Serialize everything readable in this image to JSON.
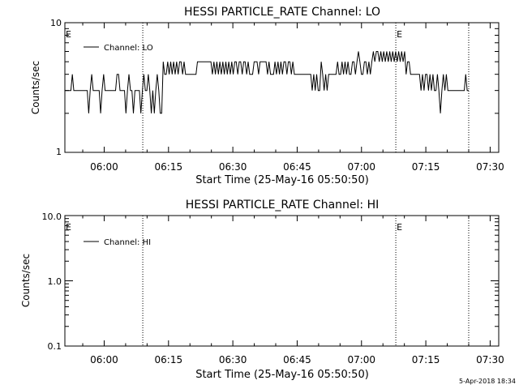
{
  "chart_data": [
    {
      "type": "line",
      "title": "HESSI PARTICLE_RATE Channel: LO",
      "xlabel": "Start Time (25-May-16 05:50:50)",
      "ylabel": "Counts/sec",
      "yscale": "log",
      "xlim": [
        "05:50:50",
        "07:32:00"
      ],
      "ylim": [
        1,
        10
      ],
      "x_ticks": [
        "06:00",
        "06:15",
        "06:30",
        "06:45",
        "07:00",
        "07:15",
        "07:30"
      ],
      "y_ticks": [
        "1",
        "10"
      ],
      "legend": [
        "Channel: LO"
      ],
      "legend_position": "top-left",
      "event_markers": [
        {
          "time": "05:50:50",
          "label": "E"
        },
        {
          "time": "06:09:00",
          "label": ""
        },
        {
          "time": "07:08:00",
          "label": "E"
        },
        {
          "time": "07:25:00",
          "label": ""
        }
      ],
      "series": [
        {
          "name": "Channel: LO",
          "time_start": "05:50:50",
          "time_end": "07:25:00",
          "values": [
            3,
            3,
            3,
            3,
            3,
            4,
            3,
            3,
            3,
            3,
            3,
            3,
            3,
            3,
            3,
            3,
            2,
            3,
            4,
            3,
            3,
            3,
            3,
            3,
            2,
            3,
            4,
            3,
            3,
            3,
            3,
            3,
            3,
            3,
            3,
            4,
            4,
            3,
            3,
            3,
            3,
            2,
            3,
            4,
            3,
            3,
            2,
            3,
            3,
            3,
            3,
            2,
            3,
            4,
            3,
            3,
            4,
            3,
            2,
            3,
            2,
            3,
            4,
            3,
            2,
            2,
            5,
            4,
            4,
            5,
            4,
            5,
            4,
            5,
            4,
            5,
            4,
            5,
            5,
            4,
            5,
            4,
            4,
            4,
            4,
            4,
            4,
            4,
            4,
            5,
            5,
            5,
            5,
            5,
            5,
            5,
            5,
            5,
            5,
            4,
            5,
            4,
            5,
            4,
            5,
            4,
            5,
            4,
            5,
            4,
            5,
            4,
            5,
            4,
            5,
            5,
            4,
            5,
            5,
            4,
            5,
            5,
            4,
            5,
            4,
            4,
            4,
            5,
            5,
            5,
            4,
            5,
            5,
            5,
            5,
            5,
            4,
            5,
            4,
            4,
            4,
            5,
            4,
            5,
            4,
            5,
            4,
            5,
            5,
            4,
            5,
            5,
            4,
            5,
            4,
            4,
            4,
            4,
            4,
            4,
            4,
            4,
            4,
            4,
            4,
            4,
            3,
            4,
            3,
            4,
            3,
            3,
            5,
            4,
            3,
            4,
            3,
            4,
            4,
            4,
            4,
            4,
            4,
            5,
            4,
            4,
            5,
            4,
            5,
            4,
            5,
            4,
            4,
            5,
            5,
            4,
            5,
            6,
            5,
            4,
            4,
            5,
            5,
            4,
            5,
            4,
            5,
            6,
            5,
            6,
            6,
            5,
            6,
            5,
            6,
            5,
            6,
            5,
            6,
            5,
            6,
            5,
            6,
            5,
            6,
            5,
            6,
            5,
            6,
            4,
            5,
            5,
            4,
            4,
            4,
            4,
            4,
            4,
            4,
            3,
            4,
            3,
            4,
            4,
            3,
            4,
            3,
            4,
            3,
            3,
            4,
            3,
            2,
            3,
            4,
            3,
            4,
            3,
            3,
            3,
            3,
            3,
            3,
            3,
            3,
            3,
            3,
            3,
            3,
            4,
            3,
            3
          ]
        }
      ]
    },
    {
      "type": "line",
      "title": "HESSI PARTICLE_RATE Channel: HI",
      "xlabel": "Start Time (25-May-16 05:50:50)",
      "ylabel": "Counts/sec",
      "yscale": "log",
      "xlim": [
        "05:50:50",
        "07:32:00"
      ],
      "ylim": [
        0.1,
        10.0
      ],
      "x_ticks": [
        "06:00",
        "06:15",
        "06:30",
        "06:45",
        "07:00",
        "07:15",
        "07:30"
      ],
      "y_ticks": [
        "0.1",
        "1.0",
        "10.0"
      ],
      "legend": [
        "Channel: HI"
      ],
      "legend_position": "top-left",
      "event_markers": [
        {
          "time": "05:50:50",
          "label": "E"
        },
        {
          "time": "06:09:00",
          "label": ""
        },
        {
          "time": "07:08:00",
          "label": "E"
        },
        {
          "time": "07:25:00",
          "label": ""
        }
      ],
      "series": [
        {
          "name": "Channel: HI",
          "values": []
        }
      ]
    }
  ],
  "footer": {
    "timestamp": "5-Apr-2018 18:34"
  }
}
